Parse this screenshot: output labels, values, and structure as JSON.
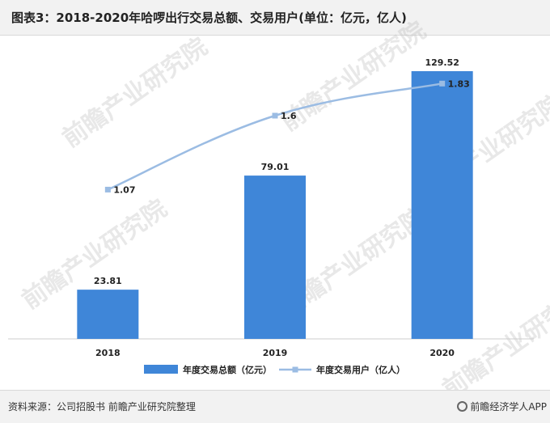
{
  "header": {
    "title": "图表3：2018-2020年哈啰出行交易总额、交易用户(单位：亿元，亿人)"
  },
  "chart_data": {
    "type": "bar",
    "title": "图表3：2018-2020年哈啰出行交易总额、交易用户(单位：亿元，亿人)",
    "categories": [
      "2018",
      "2019",
      "2020"
    ],
    "series": [
      {
        "name": "年度交易总额（亿元）",
        "type": "bar",
        "values": [
          23.81,
          79.01,
          129.52
        ],
        "color": "#3f86d8"
      },
      {
        "name": "年度交易用户（亿人）",
        "type": "line",
        "values": [
          1.07,
          1.6,
          1.83
        ],
        "color": "#9bbce3"
      }
    ],
    "ylim_bar": [
      0,
      135
    ],
    "ylim_line": [
      0,
      2.0
    ],
    "legend": "bottom-center",
    "grid": false
  },
  "watermark": {
    "text": "前瞻产业研究院"
  },
  "footer": {
    "source": "资料来源：公司招股书 前瞻产业研究院整理",
    "brand": "前瞻经济学人APP",
    "brand_icon": "qianzhan-logo-icon"
  }
}
